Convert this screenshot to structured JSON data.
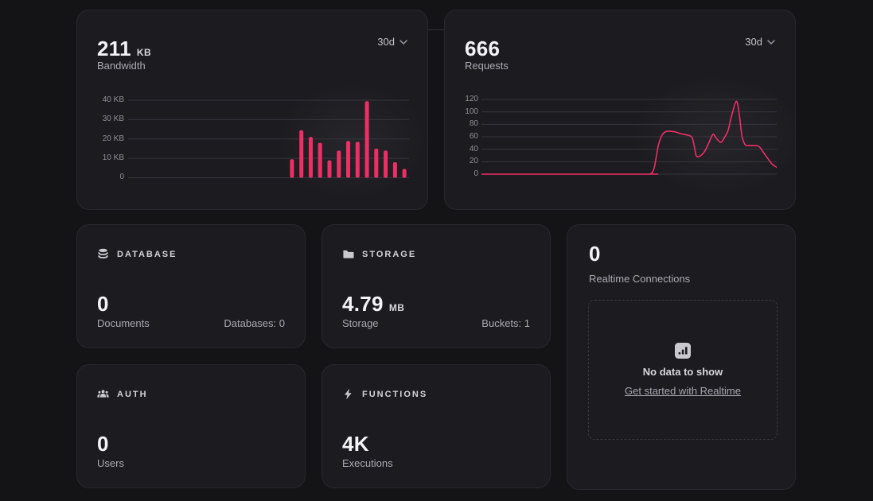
{
  "theme": {
    "accent": "#f02e65",
    "page_bg": "#141417",
    "card_bg": "#1c1c20",
    "card_border": "#28282d",
    "grid_line": "#34343e",
    "text_primary": "#f4f4f6",
    "text_muted": "#a9a9b2"
  },
  "bandwidth_card": {
    "value": "211",
    "unit": "KB",
    "label": "Bandwidth",
    "range_label": "30d"
  },
  "requests_card": {
    "value": "666",
    "label": "Requests",
    "range_label": "30d"
  },
  "chart_data": [
    {
      "type": "bar",
      "name": "bandwidth",
      "title": "Bandwidth",
      "period": "30d",
      "unit": "KB",
      "ylim": [
        0,
        40
      ],
      "ytick_labels": [
        "40 KB",
        "30 KB",
        "20 KB",
        "10 KB",
        "0"
      ],
      "ytick_values": [
        40,
        30,
        20,
        10,
        0
      ],
      "num_days": 30,
      "bar_start_day": 17,
      "values_kb": [
        9.5,
        24.5,
        21,
        18,
        9,
        14,
        19,
        18.5,
        39.5,
        15,
        14,
        8,
        4.5
      ],
      "bar_color": "#f02e65",
      "grid": true,
      "legend": false
    },
    {
      "type": "line",
      "name": "requests",
      "title": "Requests",
      "period": "30d",
      "ylim": [
        0,
        120
      ],
      "ytick_labels": [
        "120",
        "100",
        "80",
        "60",
        "40",
        "20",
        "0"
      ],
      "ytick_values": [
        120,
        100,
        80,
        60,
        40,
        20,
        0
      ],
      "points": [
        [
          0,
          0
        ],
        [
          0.55,
          0
        ],
        [
          0.571,
          0
        ],
        [
          0.585,
          10
        ],
        [
          0.6,
          48
        ],
        [
          0.615,
          65
        ],
        [
          0.633,
          69
        ],
        [
          0.655,
          68
        ],
        [
          0.675,
          65
        ],
        [
          0.703,
          62
        ],
        [
          0.714,
          58
        ],
        [
          0.722,
          42
        ],
        [
          0.728,
          29
        ],
        [
          0.74,
          29
        ],
        [
          0.755,
          36
        ],
        [
          0.77,
          50
        ],
        [
          0.784,
          64
        ],
        [
          0.795,
          58
        ],
        [
          0.811,
          51
        ],
        [
          0.822,
          58
        ],
        [
          0.835,
          70
        ],
        [
          0.848,
          95
        ],
        [
          0.863,
          117
        ],
        [
          0.872,
          100
        ],
        [
          0.882,
          62
        ],
        [
          0.892,
          48
        ],
        [
          0.9,
          46
        ],
        [
          0.925,
          46
        ],
        [
          0.941,
          44
        ],
        [
          0.955,
          35
        ],
        [
          0.97,
          25
        ],
        [
          0.985,
          16
        ],
        [
          1,
          11
        ]
      ],
      "line_color": "#f02e65",
      "grid": true,
      "legend": false
    }
  ],
  "database_card": {
    "section": "DATABASE",
    "value": "0",
    "label": "Documents",
    "meta": "Databases: 0"
  },
  "storage_card": {
    "section": "STORAGE",
    "value": "4.79",
    "unit": "MB",
    "label": "Storage",
    "meta": "Buckets: 1"
  },
  "auth_card": {
    "section": "AUTH",
    "value": "0",
    "label": "Users"
  },
  "functions_card": {
    "section": "FUNCTIONS",
    "value": "4K",
    "label": "Executions"
  },
  "realtime_card": {
    "value": "0",
    "label": "Realtime Connections",
    "empty_title": "No data to show",
    "empty_link": "Get started with Realtime"
  }
}
